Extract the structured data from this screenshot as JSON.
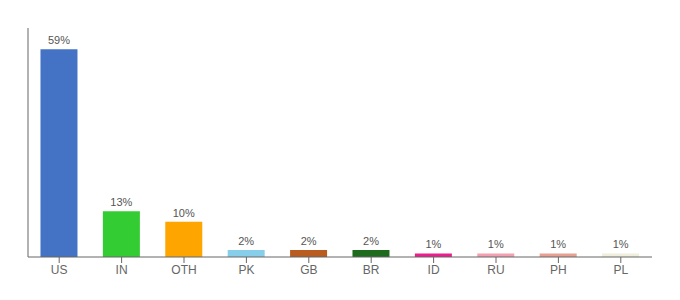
{
  "chart_data": {
    "type": "bar",
    "categories": [
      "US",
      "IN",
      "OTH",
      "PK",
      "GB",
      "BR",
      "ID",
      "RU",
      "PH",
      "PL"
    ],
    "values": [
      59,
      13,
      10,
      2,
      2,
      2,
      1,
      1,
      1,
      1
    ],
    "value_labels": [
      "59%",
      "13%",
      "10%",
      "2%",
      "2%",
      "2%",
      "1%",
      "1%",
      "1%",
      "1%"
    ],
    "colors": [
      "#4472c4",
      "#33cc33",
      "#ffa500",
      "#87ceeb",
      "#b85c20",
      "#1e6b1e",
      "#e91e8c",
      "#f4a0b0",
      "#e8a090",
      "#f0eedc"
    ],
    "ylim": [
      0,
      65
    ],
    "data_labels": true,
    "tick_labels": "x",
    "grid": false
  }
}
